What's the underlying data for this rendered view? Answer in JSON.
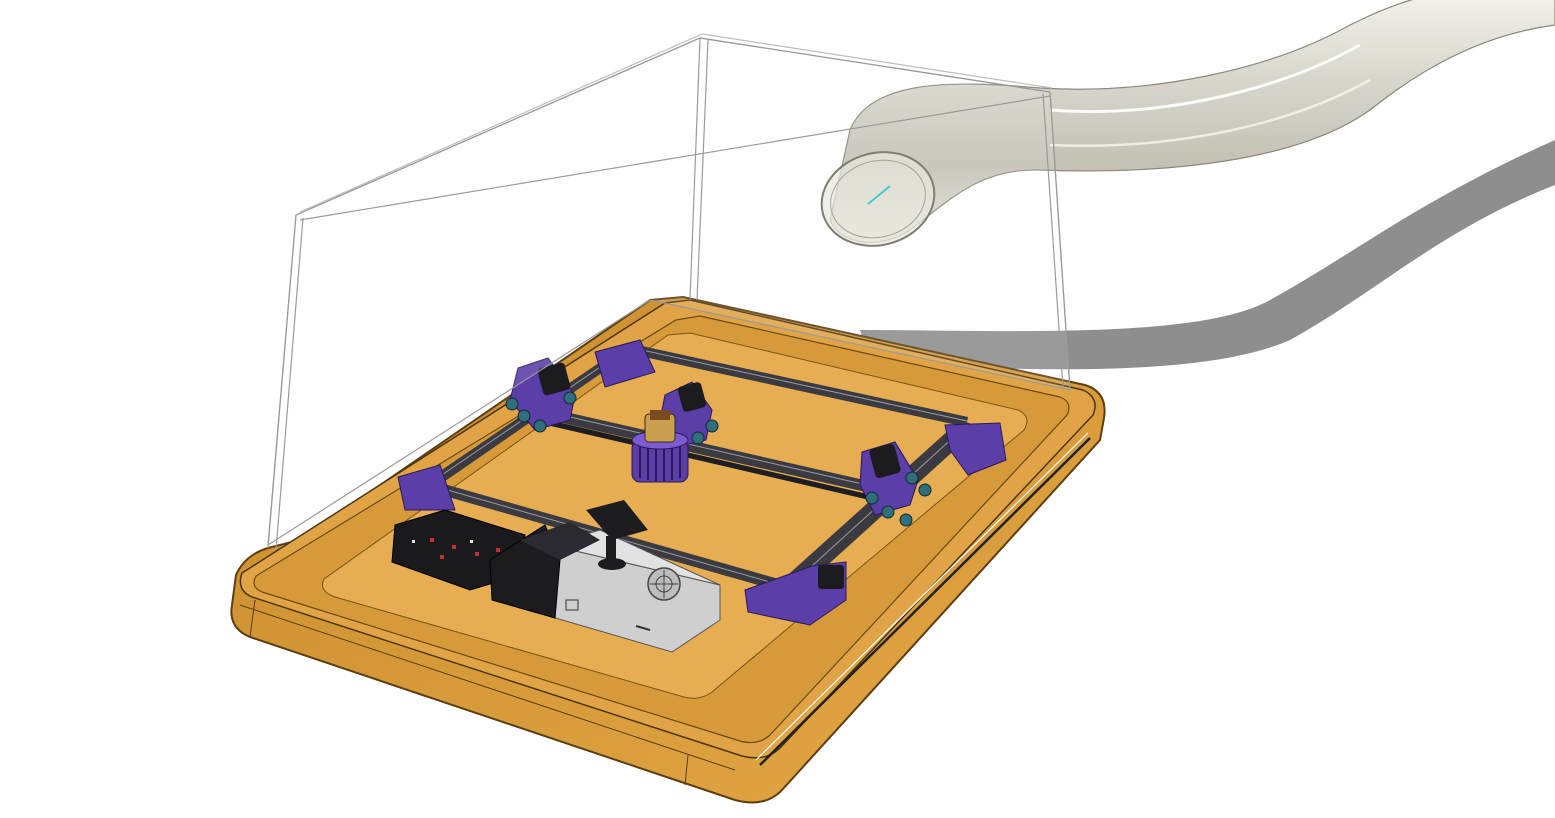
{
  "scene": {
    "background": "#ffffff",
    "parts": [
      {
        "id": "enclosure-hood",
        "kind": "transparent shell"
      },
      {
        "id": "exhaust-hose",
        "kind": "flexible duct"
      },
      {
        "id": "base-tray",
        "kind": "tray"
      },
      {
        "id": "gantry-frame",
        "kind": "aluminum extrusion frame"
      },
      {
        "id": "laser-head",
        "kind": "laser module"
      },
      {
        "id": "controller-board",
        "kind": "electronics"
      },
      {
        "id": "power-supply",
        "kind": "psu"
      }
    ],
    "colors": {
      "tray": "#d99a3a",
      "tray_inner": "#e2a84a",
      "tray_edge": "#6b4a14",
      "purple": "#5b3ea8",
      "extrusion": "#3a3a40",
      "hose": "#c8c6b8",
      "shadow": "#8c8c8c",
      "psu": "#c9c9c9",
      "hood_stroke": "#9a9a9a"
    }
  }
}
